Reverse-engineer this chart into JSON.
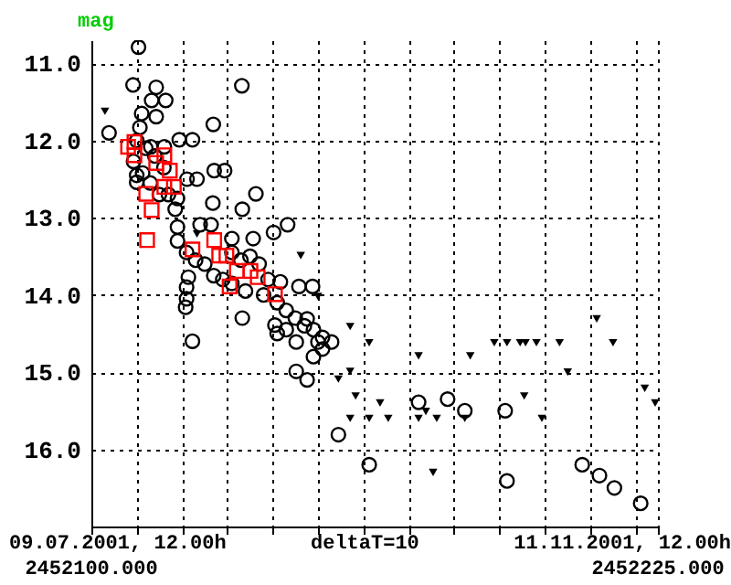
{
  "chart_data": {
    "type": "scatter",
    "ylabel": "mag",
    "xlim": [
      2452100,
      2452225
    ],
    "xticks": [
      {
        "value": 2452100,
        "label": "2452100.000"
      },
      {
        "value": 2452110,
        "label": null
      },
      {
        "value": 2452120,
        "label": null
      },
      {
        "value": 2452130,
        "label": null
      },
      {
        "value": 2452140,
        "label": null
      },
      {
        "value": 2452150,
        "label": null
      },
      {
        "value": 2452160,
        "label": null
      },
      {
        "value": 2452170,
        "label": null
      },
      {
        "value": 2452180,
        "label": null
      },
      {
        "value": 2452190,
        "label": null
      },
      {
        "value": 2452200,
        "label": null
      },
      {
        "value": 2452210,
        "label": null
      },
      {
        "value": 2452220,
        "label": null
      },
      {
        "value": 2452225,
        "label": "2452225.000"
      }
    ],
    "ylim": [
      17.0,
      10.7
    ],
    "yticks": [
      {
        "value": 11,
        "label": "11.0"
      },
      {
        "value": 12,
        "label": "12.0"
      },
      {
        "value": 13,
        "label": "13.0"
      },
      {
        "value": 14,
        "label": "14.0"
      },
      {
        "value": 15,
        "label": "15.0"
      },
      {
        "value": 16,
        "label": "16.0"
      }
    ],
    "grid": true,
    "annotations": [
      "09.07.2001, 12.00h",
      "deltaT=10",
      "11.11.2001, 12.00h"
    ],
    "series": [
      {
        "color": "#000000",
        "marker": "circle",
        "x": [
          2452110.4,
          2452103.9,
          2452109.2,
          2452114.3,
          2452113.3,
          2452116.4,
          2452111.1,
          2452114.3,
          2452110.7,
          2452119.4,
          2452122.3,
          2452126.9,
          2452133.2,
          2452109.3,
          2452111.3,
          2452121.1,
          2452123.3,
          2452127.1,
          2452129.4,
          2452136.3,
          2452126.8,
          2452133.3,
          2452118.5,
          2452113.1,
          2452116.1,
          2452110.0,
          2452119.0,
          2452124.0,
          2452126.4,
          2452140.2,
          2452143.3,
          2452131.0,
          2452135.7,
          2452121.4,
          2452120.8,
          2452122.3,
          2452133.3,
          2452140.5,
          2452141.7,
          2452145.8,
          2452148.8,
          2452147.6,
          2452145.2,
          2452150.0,
          2452153.0,
          2452145.2,
          2452147.6,
          2452154.5,
          2452172.2,
          2452178.6,
          2452182.4,
          2452191.3,
          2452161.3,
          2452191.7,
          2452208.3,
          2452212.1,
          2452215.4,
          2452221.2,
          2452110,
          2452112,
          2452114,
          2452116,
          2452110,
          2452113,
          2452117,
          2452115,
          2452119,
          2452119,
          2452121,
          2452123,
          2452125,
          2452121,
          2452121,
          2452127,
          2452129,
          2452131,
          2452133,
          2452135,
          2452137,
          2452139,
          2452131,
          2452134,
          2452138,
          2452141,
          2452143,
          2452145,
          2452147,
          2452149,
          2452151,
          2452143,
          2452141,
          2452151,
          2452149
        ],
        "values": [
          10.79,
          11.9,
          11.28,
          11.31,
          11.48,
          11.48,
          11.65,
          11.69,
          11.83,
          11.99,
          11.99,
          11.79,
          11.29,
          12.27,
          12.42,
          12.5,
          12.5,
          12.39,
          12.39,
          12.69,
          12.81,
          12.89,
          12.89,
          12.08,
          12.08,
          12.54,
          13.12,
          13.09,
          13.09,
          13.19,
          13.09,
          13.27,
          13.27,
          13.77,
          14.16,
          14.6,
          14.3,
          14.39,
          13.83,
          13.89,
          13.89,
          14.31,
          14.61,
          14.61,
          14.61,
          14.99,
          15.1,
          15.81,
          15.39,
          15.35,
          15.5,
          15.5,
          16.2,
          16.41,
          16.2,
          16.34,
          16.5,
          16.7,
          12.0,
          12.1,
          12.2,
          12.35,
          12.45,
          12.55,
          12.7,
          12.7,
          12.75,
          13.3,
          13.45,
          13.55,
          13.6,
          13.9,
          14.05,
          13.75,
          13.8,
          13.45,
          13.55,
          13.5,
          13.6,
          13.8,
          13.85,
          13.95,
          14.0,
          14.1,
          14.2,
          14.3,
          14.4,
          14.45,
          14.55,
          14.45,
          14.5,
          14.7,
          14.8
        ]
      },
      {
        "color": "#ff0000",
        "marker": "square",
        "x": [
          2452108.1,
          2452109.5,
          2452109.5,
          2452114.3,
          2452116.1,
          2452117.3,
          2452116.1,
          2452118.2,
          2452112.1,
          2452113.3,
          2452112.3,
          2452122.3,
          2452127.1,
          2452128.2,
          2452129.8,
          2452132.1,
          2452135.1,
          2452136.7,
          2452130.5,
          2452140.5
        ],
        "values": [
          12.08,
          12.19,
          12.02,
          12.29,
          12.19,
          12.39,
          12.6,
          12.6,
          12.69,
          12.9,
          13.29,
          13.41,
          13.29,
          13.49,
          13.49,
          13.69,
          13.69,
          13.77,
          13.89,
          13.99
        ]
      },
      {
        "color": "#000000",
        "marker": "triangle",
        "x": [
          2452103.0,
          2452123.3,
          2452146.2,
          2452150.0,
          2452154.5,
          2452157.1,
          2452161.3,
          2452157.1,
          2452158.3,
          2452157.1,
          2452161.3,
          2452163.7,
          2452165.5,
          2452172.2,
          2452172.2,
          2452173.8,
          2452176.2,
          2452175.4,
          2452183.6,
          2452182.4,
          2452188.9,
          2452191.7,
          2452194.6,
          2452195.8,
          2452198.2,
          2452195.5,
          2452199.4,
          2452203.3,
          2452205.1,
          2452211.5,
          2452215.1,
          2452222.1,
          2452224.4
        ],
        "values": [
          11.62,
          13.21,
          13.49,
          14.02,
          15.09,
          14.41,
          14.62,
          14.99,
          15.31,
          15.6,
          15.6,
          15.4,
          15.6,
          14.79,
          15.6,
          15.51,
          15.6,
          16.3,
          14.79,
          15.6,
          14.62,
          14.62,
          14.62,
          14.62,
          14.62,
          15.31,
          15.6,
          14.62,
          15.0,
          14.31,
          14.62,
          15.21,
          15.4
        ]
      }
    ]
  }
}
